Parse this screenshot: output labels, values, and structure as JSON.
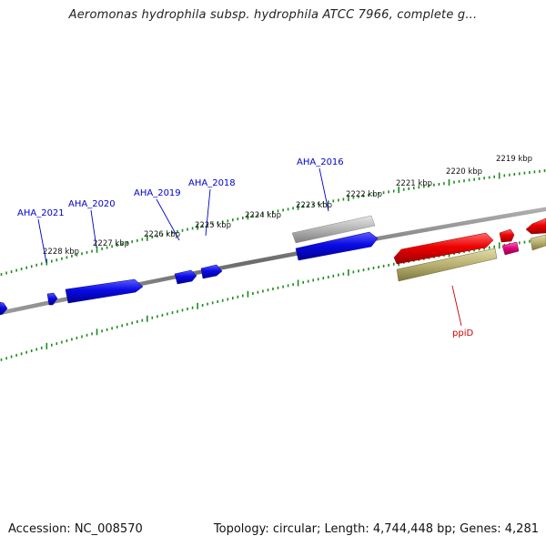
{
  "title": "Aeromonas hydrophila subsp. hydrophila ATCC 7966, complete g...",
  "footer": {
    "accession": "Accession: NC_008570",
    "topology": "Topology: circular; Length: 4,744,448 bp; Genes: 4,281"
  },
  "colors": {
    "backbone": "#7a7a7a",
    "ticks": "#1f8a1f",
    "cds_blue": "#0a0ae6",
    "cds_red": "#ee0000",
    "cds_grey": "#b4b4b4",
    "cds_olive": "#b8b070",
    "cds_magenta": "#e0007a",
    "label_blue": "#0000cc",
    "label_red": "#cc0000"
  },
  "kbp_labels": [
    "2228 kbp",
    "2227 kbp",
    "2226 kbp",
    "2225 kbp",
    "2224 kbp",
    "2223 kbp",
    "2222 kbp",
    "2221 kbp",
    "2220 kbp",
    "2219 kbp"
  ],
  "gene_labels": [
    "AHA_2021",
    "AHA_2020",
    "AHA_2019",
    "AHA_2018",
    "AHA_2016",
    "ppiD"
  ]
}
